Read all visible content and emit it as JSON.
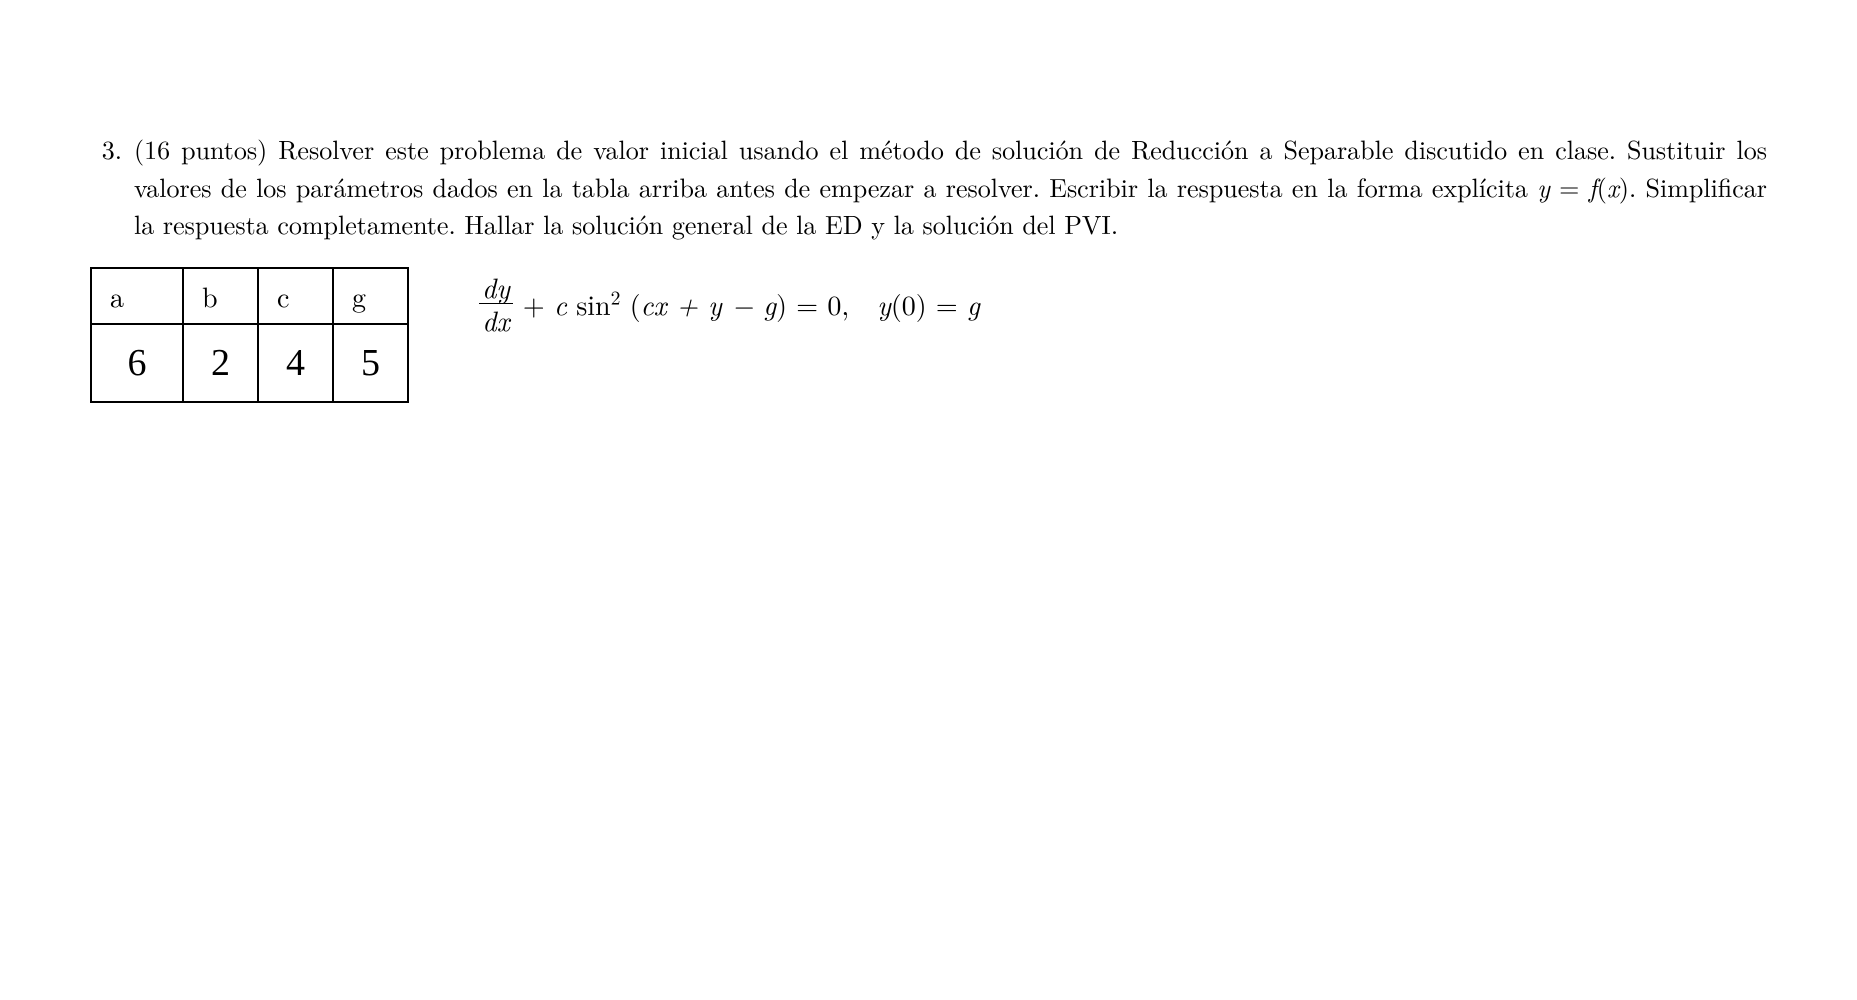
{
  "problem": {
    "number": "3.",
    "text": "(16 puntos) Resolver este problema de valor inicial usando el método de solución de Reducción a Separable discutido en clase. Sustituir los valores de los parámetros dados en la tabla arriba antes de empezar a resolver. Escribir la respuesta en la forma explícita ",
    "text2": ". Simplificar la respuesta completamente. Hallar la solución general de la ED y la solución del PVI."
  },
  "table": {
    "headers": [
      "a",
      "b",
      "c",
      "g"
    ],
    "values": [
      "6",
      "2",
      "4",
      "5"
    ]
  },
  "equation": {
    "frac_num": "dy",
    "frac_den": "dx",
    "plus": " + ",
    "c_coef": "c",
    "sin": " sin",
    "sup2": "2",
    "open": " (",
    "arg": "cx + y − g",
    "close": ") = 0,",
    "ic_lhs": "y",
    "ic_paren": "(0) = ",
    "ic_rhs": "g",
    "yfx_y": "y",
    "yfx_eq": " = ",
    "yfx_f": "f",
    "yfx_paren": "(x)"
  },
  "styling": {
    "background_color": "#ffffff",
    "text_color": "#000000",
    "font_family_main": "Latin Modern Roman / Computer Modern / serif",
    "font_family_handwritten": "Comic Sans MS / cursive",
    "font_size_body": 26,
    "font_size_equation": 28,
    "font_size_handwritten": 38,
    "table_border_color": "#000000",
    "table_border_width": 2
  }
}
